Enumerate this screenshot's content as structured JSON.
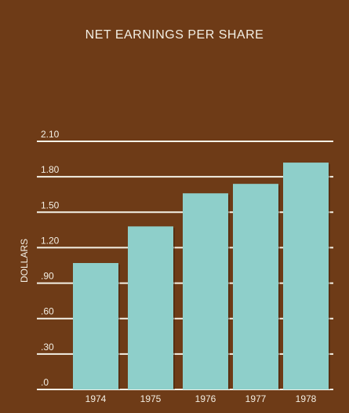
{
  "chart_data": {
    "type": "bar",
    "title": "NET EARNINGS PER SHARE",
    "xlabel": "",
    "ylabel": "DOLLARS",
    "categories": [
      "1974",
      "1975",
      "1976",
      "1977",
      "1978"
    ],
    "values": [
      1.07,
      1.38,
      1.66,
      1.74,
      1.92
    ],
    "ylim": [
      0,
      2.1
    ],
    "yticks": [
      0,
      0.3,
      0.6,
      0.9,
      1.2,
      1.5,
      1.8,
      2.1
    ],
    "ytick_labels": [
      ".0",
      ".30",
      ".60",
      ".90",
      "1.20",
      "1.50",
      "1.80",
      "2.10"
    ],
    "grid": true,
    "colors": {
      "background": "#6e3b17",
      "bar": "#8ecfca",
      "grid": "#f4f1e6",
      "text": "#f3efe4"
    }
  }
}
